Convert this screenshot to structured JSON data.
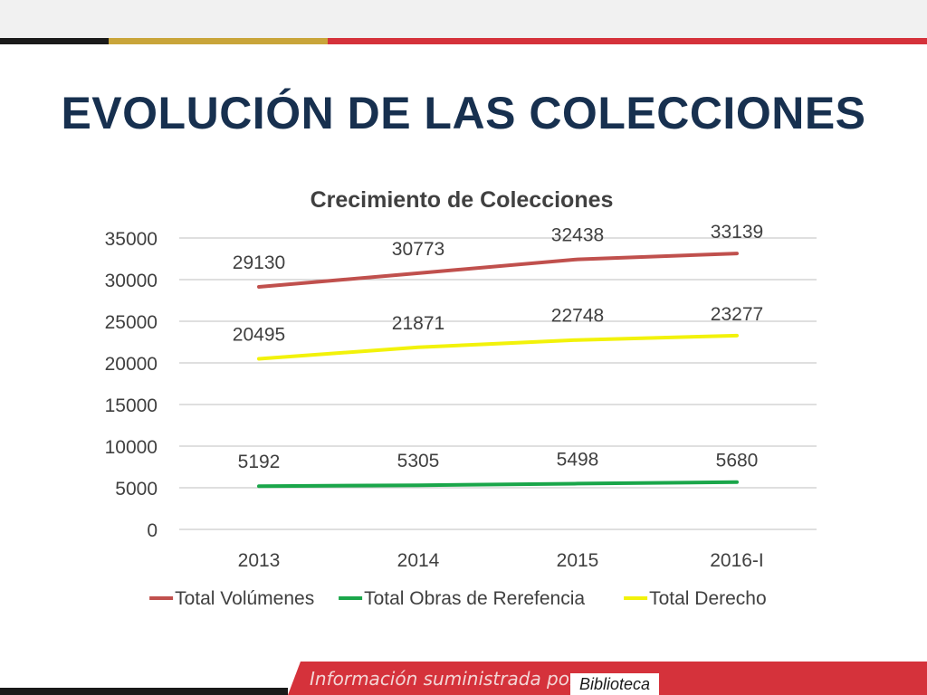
{
  "slide": {
    "title": "EVOLUCIÓN DE LAS COLECCIONES",
    "footer_caption": "Información suministrada por:",
    "footer_source": "Biblioteca"
  },
  "colors": {
    "title": "#17304f",
    "stripe_black": "#1a1a1a",
    "stripe_gold": "#c9a53a",
    "stripe_red": "#d5323b"
  },
  "chart_data": {
    "type": "line",
    "title": "Crecimiento de Colecciones",
    "categories": [
      "2013",
      "2014",
      "2015",
      "2016-I"
    ],
    "y_ticks": [
      0,
      5000,
      10000,
      15000,
      20000,
      25000,
      30000,
      35000
    ],
    "ylim": [
      0,
      35000
    ],
    "grid": true,
    "legend_position": "bottom",
    "series": [
      {
        "name": "Total Volúmenes",
        "color": "#c0504d",
        "values": [
          29130,
          30773,
          32438,
          33139
        ]
      },
      {
        "name": "Total Obras de Rerefencia",
        "color": "#1aa64a",
        "values": [
          5192,
          5305,
          5498,
          5680
        ]
      },
      {
        "name": "Total Derecho",
        "color": "#f2f20a",
        "values": [
          20495,
          21871,
          22748,
          23277
        ]
      }
    ]
  }
}
